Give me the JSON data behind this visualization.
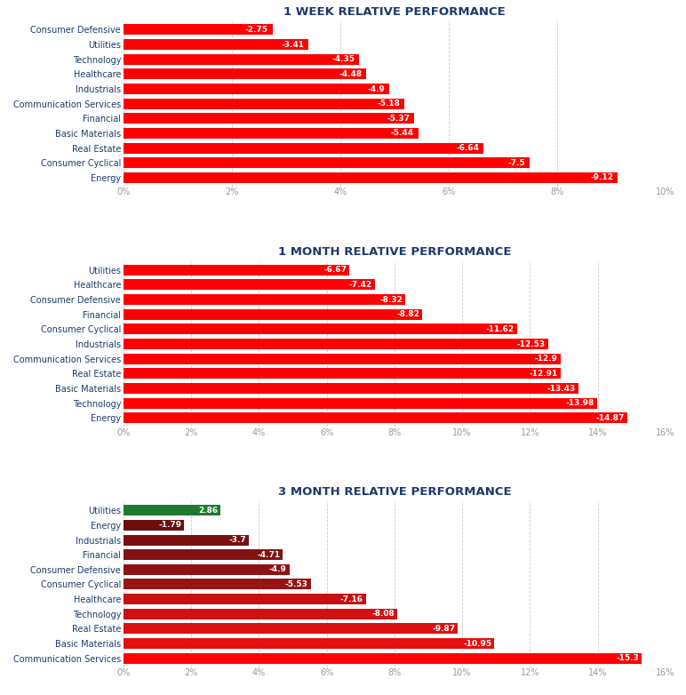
{
  "chart1": {
    "title": "1 WEEK RELATIVE PERFORMANCE",
    "categories": [
      "Consumer Defensive",
      "Utilities",
      "Technology",
      "Healthcare",
      "Industrials",
      "Communication Services",
      "Financial",
      "Basic Materials",
      "Real Estate",
      "Consumer Cyclical",
      "Energy"
    ],
    "values": [
      -2.75,
      -3.41,
      -4.35,
      -4.48,
      -4.9,
      -5.18,
      -5.37,
      -5.44,
      -6.64,
      -7.5,
      -9.12
    ],
    "bar_colors": [
      "#ff0000",
      "#ff0000",
      "#ff0000",
      "#ff0000",
      "#ff0000",
      "#ff0000",
      "#ff0000",
      "#ff0000",
      "#ff0000",
      "#ff0000",
      "#ff0000"
    ],
    "xlim": [
      0,
      10
    ],
    "xticks": [
      0,
      2,
      4,
      6,
      8,
      10
    ],
    "xtick_labels": [
      "0%",
      "2%",
      "4%",
      "6%",
      "8%",
      "10%"
    ]
  },
  "chart2": {
    "title": "1 MONTH RELATIVE PERFORMANCE",
    "categories": [
      "Utilities",
      "Healthcare",
      "Consumer Defensive",
      "Financial",
      "Consumer Cyclical",
      "Industrials",
      "Communication Services",
      "Real Estate",
      "Basic Materials",
      "Technology",
      "Energy"
    ],
    "values": [
      -6.67,
      -7.42,
      -8.32,
      -8.82,
      -11.62,
      -12.53,
      -12.9,
      -12.91,
      -13.43,
      -13.98,
      -14.87
    ],
    "bar_colors": [
      "#ff0000",
      "#ff0000",
      "#ff0000",
      "#ff0000",
      "#ff0000",
      "#ff0000",
      "#ff0000",
      "#ff0000",
      "#ff0000",
      "#ff0000",
      "#ff0000"
    ],
    "xlim": [
      0,
      16
    ],
    "xticks": [
      0,
      2,
      4,
      6,
      8,
      10,
      12,
      14,
      16
    ],
    "xtick_labels": [
      "0%",
      "2%",
      "4%",
      "6%",
      "8%",
      "10%",
      "12%",
      "14%",
      "16%"
    ]
  },
  "chart3": {
    "title": "3 MONTH RELATIVE PERFORMANCE",
    "categories": [
      "Utilities",
      "Energy",
      "Industrials",
      "Financial",
      "Consumer Defensive",
      "Consumer Cyclical",
      "Healthcare",
      "Technology",
      "Real Estate",
      "Basic Materials",
      "Communication Services"
    ],
    "values": [
      2.86,
      -1.79,
      -3.7,
      -4.71,
      -4.9,
      -5.53,
      -7.16,
      -8.08,
      -9.87,
      -10.95,
      -15.3
    ],
    "bar_colors": [
      "#1e7a2e",
      "#6b0f0f",
      "#7a1010",
      "#841212",
      "#8e1212",
      "#961414",
      "#c81010",
      "#d11010",
      "#dc1010",
      "#e51010",
      "#ff0000"
    ],
    "xlim": [
      0,
      16
    ],
    "xticks": [
      0,
      2,
      4,
      6,
      8,
      10,
      12,
      14,
      16
    ],
    "xtick_labels": [
      "0%",
      "2%",
      "4%",
      "6%",
      "8%",
      "10%",
      "12%",
      "14%",
      "16%"
    ]
  },
  "bg_color": "#ffffff",
  "title_color": "#1a3a6b",
  "label_color": "#1a3a6b",
  "tick_color": "#999999",
  "grid_color": "#cccccc",
  "value_label_color": "#ffffff",
  "title_fontsize": 9.5,
  "label_fontsize": 7,
  "tick_fontsize": 7,
  "value_fontsize": 6.5
}
